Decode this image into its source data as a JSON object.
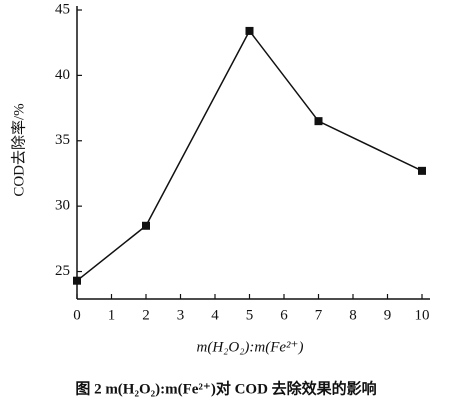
{
  "chart_data": {
    "type": "line",
    "x_label": "m(H₂O₂):m(Fe²⁺)",
    "y_label": "COD去除率/%",
    "caption": "图 2   m(H₂O₂):m(Fe²⁺)对 COD 去除效果的影响",
    "x": [
      0,
      2,
      5,
      7,
      10
    ],
    "series": [
      {
        "name": "COD",
        "color": "#111111",
        "values": [
          24.3,
          28.5,
          43.4,
          36.5,
          32.7
        ]
      }
    ],
    "xlim": [
      0,
      10
    ],
    "xticks": [
      0,
      1,
      2,
      3,
      4,
      5,
      6,
      7,
      8,
      9,
      10
    ],
    "ylim": [
      22.9,
      45
    ],
    "yticks": [
      25,
      30,
      35,
      40,
      45
    ]
  }
}
